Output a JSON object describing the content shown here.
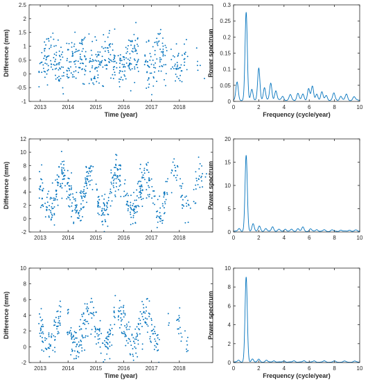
{
  "chart_data": [
    {
      "type": "scatter",
      "xlabel": "Time (year)",
      "ylabel": "Difference (mm)",
      "xticks": [
        "2013",
        "2014",
        "2015",
        "2016",
        "2017",
        "2018"
      ],
      "xlim": [
        2012.6,
        2019.2
      ],
      "ylim": [
        -1,
        2.5
      ],
      "yticks": [
        -1,
        -0.5,
        0,
        0.5,
        1,
        1.5,
        2,
        2.5
      ],
      "yticklabels": [
        "-1",
        "-0.5",
        "0",
        "0.5",
        "1",
        "1.5",
        "2",
        "2.5"
      ],
      "grid": false,
      "series": [
        {
          "color": "#0072BD",
          "model": {
            "mean": 0.45,
            "amplitude": 0.25,
            "phase": 0.15,
            "noise": 0.42
          },
          "segments": [
            [
              2012.95,
              2013.85,
              95
            ],
            [
              2013.95,
              2014.65,
              85
            ],
            [
              2014.75,
              2015.75,
              110
            ],
            [
              2015.8,
              2016.55,
              90
            ],
            [
              2016.75,
              2017.55,
              85
            ],
            [
              2017.7,
              2018.3,
              45
            ],
            [
              2018.6,
              2019.0,
              6
            ]
          ]
        }
      ]
    },
    {
      "type": "line",
      "xlabel": "Frequency (cycle/year)",
      "ylabel": "Power spectrum",
      "xticks": [
        "0",
        "2",
        "4",
        "6",
        "8",
        "10"
      ],
      "xlim": [
        0,
        10
      ],
      "ylim": [
        0,
        0.3
      ],
      "yticks": [
        0,
        0.05,
        0.1,
        0.15,
        0.2,
        0.25,
        0.3
      ],
      "yticklabels": [
        "0",
        "0.05",
        "0.1",
        "0.15",
        "0.2",
        "0.25",
        "0.3"
      ],
      "grid": false,
      "series": [
        {
          "color": "#0072BD",
          "base": 0.004,
          "peaks": [
            [
              0.28,
              0.055
            ],
            [
              1.0,
              0.272
            ],
            [
              1.45,
              0.035
            ],
            [
              2.0,
              0.098
            ],
            [
              2.45,
              0.04
            ],
            [
              2.95,
              0.052
            ],
            [
              3.35,
              0.03
            ],
            [
              3.9,
              0.012
            ],
            [
              4.5,
              0.016
            ],
            [
              5.1,
              0.022
            ],
            [
              5.5,
              0.018
            ],
            [
              5.95,
              0.037
            ],
            [
              6.25,
              0.042
            ],
            [
              6.6,
              0.02
            ],
            [
              7.0,
              0.025
            ],
            [
              7.35,
              0.015
            ],
            [
              7.95,
              0.021
            ],
            [
              8.5,
              0.013
            ],
            [
              8.95,
              0.018
            ],
            [
              9.55,
              0.01
            ]
          ]
        }
      ]
    },
    {
      "type": "scatter",
      "xlabel": "",
      "ylabel": "Difference (mm)",
      "xticks": [
        "2013",
        "2014",
        "2015",
        "2016",
        "2017",
        "2018"
      ],
      "xlim": [
        2012.6,
        2019.2
      ],
      "ylim": [
        -2,
        12
      ],
      "yticks": [
        -2,
        0,
        2,
        4,
        6,
        8,
        10,
        12
      ],
      "yticklabels": [
        "-2",
        "0",
        "2",
        "4",
        "6",
        "8",
        "10",
        "12"
      ],
      "grid": false,
      "series": [
        {
          "color": "#0072BD",
          "model": {
            "mean": 3.8,
            "amplitude": 3.0,
            "phase": 0.55,
            "noise": 1.4
          },
          "segments": [
            [
              2012.95,
              2013.9,
              110
            ],
            [
              2013.95,
              2014.9,
              120
            ],
            [
              2015.0,
              2015.9,
              110
            ],
            [
              2016.0,
              2016.95,
              110
            ],
            [
              2017.0,
              2017.6,
              50
            ],
            [
              2017.7,
              2018.4,
              40
            ],
            [
              2018.5,
              2019.0,
              25
            ]
          ]
        }
      ]
    },
    {
      "type": "line",
      "xlabel": "",
      "ylabel": "Power spectrum",
      "xticks": [
        "0",
        "2",
        "4",
        "6",
        "8",
        "10"
      ],
      "xlim": [
        0,
        10
      ],
      "ylim": [
        0,
        20
      ],
      "yticks": [
        0,
        5,
        10,
        15,
        20
      ],
      "yticklabels": [
        "0",
        "5",
        "10",
        "15",
        "20"
      ],
      "grid": false,
      "series": [
        {
          "color": "#0072BD",
          "base": 0.15,
          "peaks": [
            [
              0.45,
              0.6
            ],
            [
              1.0,
              16.3
            ],
            [
              1.55,
              1.7
            ],
            [
              2.05,
              1.1
            ],
            [
              2.55,
              0.6
            ],
            [
              3.1,
              1.0
            ],
            [
              3.6,
              0.4
            ],
            [
              4.1,
              0.5
            ],
            [
              4.6,
              0.4
            ],
            [
              5.1,
              0.6
            ],
            [
              5.5,
              0.9
            ],
            [
              6.1,
              0.5
            ],
            [
              6.6,
              0.4
            ],
            [
              7.2,
              0.3
            ],
            [
              7.8,
              0.3
            ],
            [
              8.5,
              0.3
            ],
            [
              9.2,
              0.3
            ],
            [
              9.7,
              0.25
            ]
          ]
        }
      ]
    },
    {
      "type": "scatter",
      "xlabel": "Time (year)",
      "ylabel": "Difference (mm)",
      "xticks": [
        "2013",
        "2014",
        "2015",
        "2016",
        "2017",
        "2018"
      ],
      "xlim": [
        2012.6,
        2019.2
      ],
      "ylim": [
        -2,
        10
      ],
      "yticks": [
        -2,
        0,
        2,
        4,
        6,
        8,
        10
      ],
      "yticklabels": [
        "-2",
        "0",
        "2",
        "4",
        "6",
        "8",
        "10"
      ],
      "grid": false,
      "series": [
        {
          "color": "#0072BD",
          "model": {
            "mean": 2.1,
            "amplitude": 2.3,
            "phase": 0.55,
            "noise": 1.2
          },
          "segments": [
            [
              2012.95,
              2013.75,
              80
            ],
            [
              2013.95,
              2014.75,
              90
            ],
            [
              2014.8,
              2015.7,
              85
            ],
            [
              2015.8,
              2016.6,
              85
            ],
            [
              2016.65,
              2017.3,
              60
            ],
            [
              2017.6,
              2017.65,
              3
            ],
            [
              2017.9,
              2018.1,
              14
            ],
            [
              2018.2,
              2018.35,
              9
            ]
          ]
        }
      ]
    },
    {
      "type": "line",
      "xlabel": "Frequency (cycle/year)",
      "ylabel": "Power spectrum",
      "xticks": [
        "0",
        "2",
        "4",
        "6",
        "8",
        "10"
      ],
      "xlim": [
        0,
        10
      ],
      "ylim": [
        0,
        10
      ],
      "yticks": [
        0,
        2,
        4,
        6,
        8,
        10
      ],
      "yticklabels": [
        "0",
        "2",
        "4",
        "6",
        "8",
        "10"
      ],
      "grid": false,
      "series": [
        {
          "color": "#0072BD",
          "base": 0.05,
          "peaks": [
            [
              0.4,
              0.2
            ],
            [
              1.0,
              9.0
            ],
            [
              1.5,
              0.35
            ],
            [
              2.0,
              0.3
            ],
            [
              2.6,
              0.2
            ],
            [
              3.2,
              0.15
            ],
            [
              4.0,
              0.15
            ],
            [
              4.8,
              0.15
            ],
            [
              5.6,
              0.15
            ],
            [
              6.4,
              0.12
            ],
            [
              7.2,
              0.12
            ],
            [
              8.0,
              0.12
            ],
            [
              8.8,
              0.1
            ],
            [
              9.6,
              0.1
            ]
          ]
        }
      ]
    }
  ]
}
